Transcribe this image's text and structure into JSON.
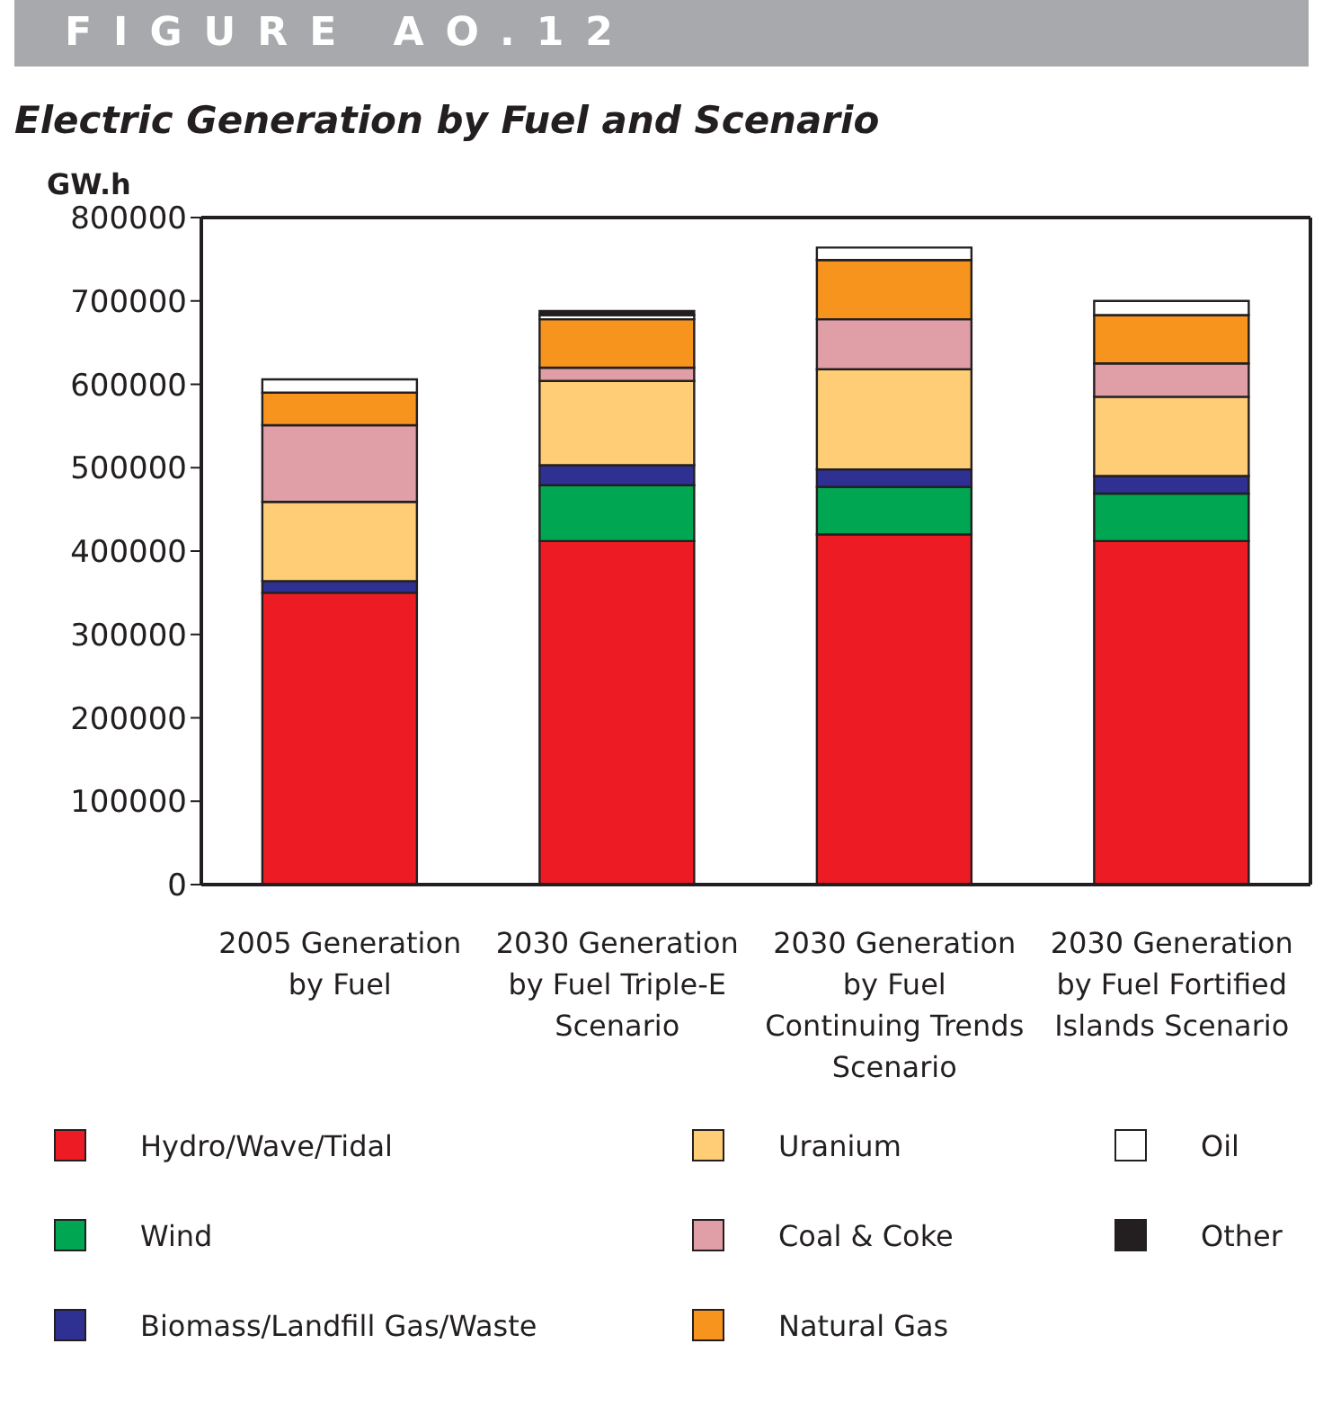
{
  "chart_data": {
    "type": "bar",
    "title": "FIGURE AO.12",
    "subtitle": "Electric Generation by Fuel and Scenario",
    "ylabel": "GW.h",
    "categories": [
      "2005 Generation by Fuel",
      "2030 Generation by Fuel Triple-E Scenario",
      "2030 Generation by Fuel Continuing Trends Scenario",
      "2030 Generation by Fuel Fortified Islands Scenario"
    ],
    "stacked": true,
    "ylim": [
      0,
      800000
    ],
    "yticks": [
      0,
      100000,
      200000,
      300000,
      400000,
      500000,
      600000,
      700000,
      800000
    ],
    "legend": "bottom",
    "series": [
      {
        "name": "Hydro/Wave/Tidal",
        "color": "#ed1c24",
        "values": [
          350000,
          412000,
          420000,
          412000
        ]
      },
      {
        "name": "Wind",
        "color": "#00a651",
        "values": [
          0,
          67000,
          57000,
          57000
        ]
      },
      {
        "name": "Biomass/Landfill Gas/Waste",
        "color": "#2e3192",
        "values": [
          14000,
          24000,
          21000,
          21000
        ]
      },
      {
        "name": "Uranium",
        "color": "#fecd76",
        "values": [
          95000,
          101000,
          120000,
          95000
        ]
      },
      {
        "name": "Coal & Coke",
        "color": "#e09ea6",
        "values": [
          92000,
          16000,
          60000,
          40000
        ]
      },
      {
        "name": "Natural Gas",
        "color": "#f7941d",
        "values": [
          39000,
          58000,
          71000,
          58000
        ]
      },
      {
        "name": "Oil",
        "color": "#ffffff",
        "values": [
          16000,
          5000,
          15000,
          17000
        ]
      },
      {
        "name": "Other",
        "color": "#231f20",
        "values": [
          0,
          5000,
          0,
          0
        ]
      }
    ]
  }
}
